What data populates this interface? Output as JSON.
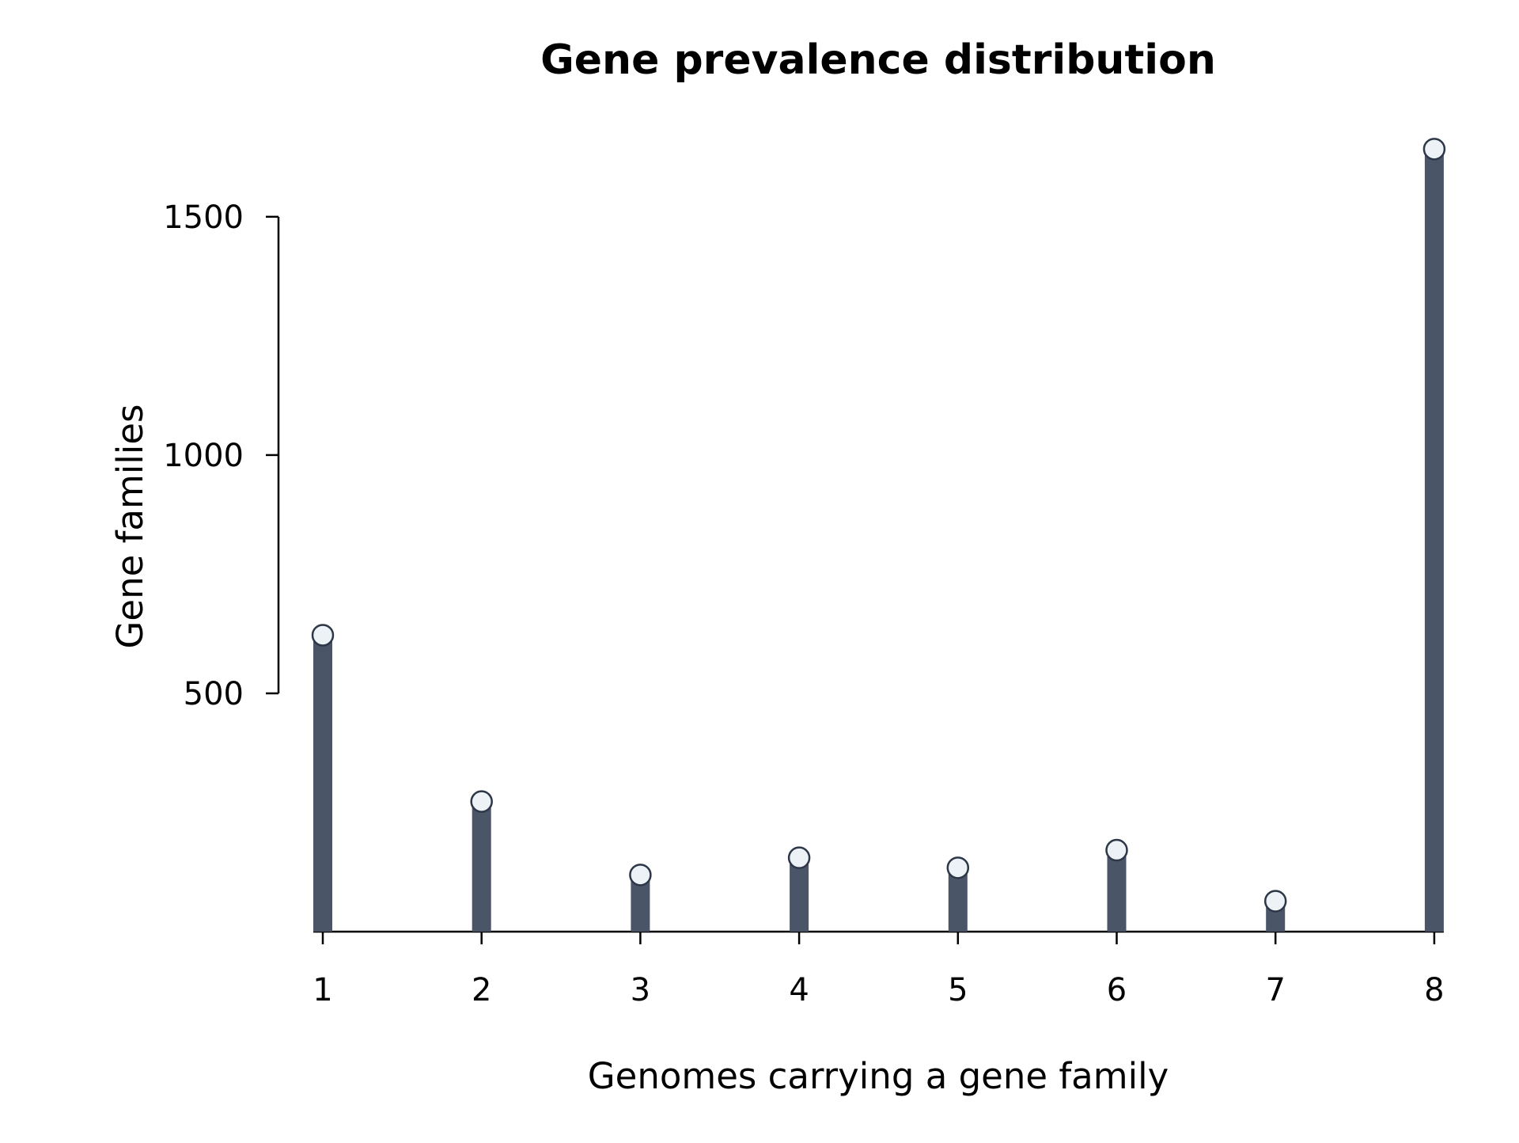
{
  "chart_data": {
    "type": "bar",
    "title": "Gene prevalence distribution",
    "xlabel": "Genomes carrying a gene family",
    "ylabel": "Gene families",
    "categories": [
      "1",
      "2",
      "3",
      "4",
      "5",
      "6",
      "7",
      "8"
    ],
    "x": [
      1,
      2,
      3,
      4,
      5,
      6,
      7,
      8
    ],
    "values": [
      622,
      273,
      119,
      155,
      134,
      171,
      64,
      1642
    ],
    "ylim": [
      0,
      1640
    ],
    "yticks": [
      500,
      1000,
      1500
    ],
    "ytick_labels": [
      "500",
      "1000",
      "1500"
    ],
    "xticks": [
      1,
      2,
      3,
      4,
      5,
      6,
      7,
      8
    ],
    "xtick_labels": [
      "1",
      "2",
      "3",
      "4",
      "5",
      "6",
      "7",
      "8"
    ],
    "grid": false,
    "legend": "none",
    "marker": "circle",
    "colors": {
      "bar": "#4a5568",
      "marker_fill": "#edf2f7",
      "marker_stroke": "#2d3748",
      "axis": "#000000"
    }
  }
}
